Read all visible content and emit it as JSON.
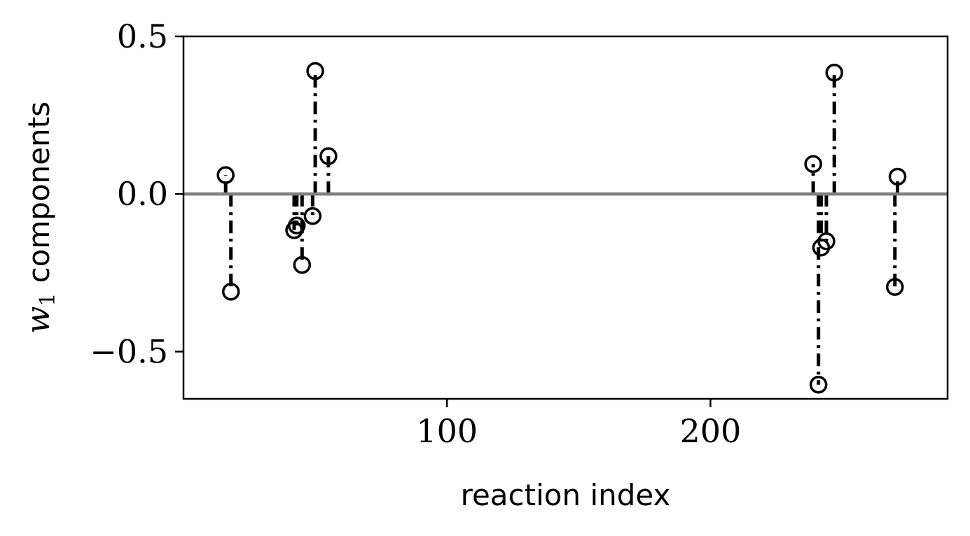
{
  "chart_data": {
    "type": "scatter",
    "style": "stem",
    "x_tick_labels": [
      "100",
      "200"
    ],
    "y_tick_labels": [
      "0.5",
      "0.0",
      "−0.5"
    ],
    "xlabel": "reaction index",
    "ylabel_math": "w",
    "ylabel_subscript": "1",
    "ylabel_text": "components",
    "xlim": [
      0,
      290
    ],
    "ylim": [
      -0.65,
      0.5
    ],
    "x_ticks": [
      100,
      200
    ],
    "y_ticks": [
      0.5,
      0.0,
      -0.5
    ],
    "baseline": 0.0,
    "grid": false,
    "colors": {
      "stem": "#000000",
      "marker": "#000000",
      "baseline": "#808080"
    },
    "points": [
      {
        "x": 16,
        "y": 0.06
      },
      {
        "x": 18,
        "y": -0.31
      },
      {
        "x": 42,
        "y": -0.115
      },
      {
        "x": 43,
        "y": -0.1
      },
      {
        "x": 45,
        "y": -0.225
      },
      {
        "x": 49,
        "y": -0.07
      },
      {
        "x": 50,
        "y": 0.39
      },
      {
        "x": 55,
        "y": 0.12
      },
      {
        "x": 239,
        "y": 0.095
      },
      {
        "x": 241,
        "y": -0.605
      },
      {
        "x": 242,
        "y": -0.17
      },
      {
        "x": 244,
        "y": -0.15
      },
      {
        "x": 247,
        "y": 0.385
      },
      {
        "x": 270,
        "y": -0.295
      },
      {
        "x": 271,
        "y": 0.055
      }
    ]
  }
}
